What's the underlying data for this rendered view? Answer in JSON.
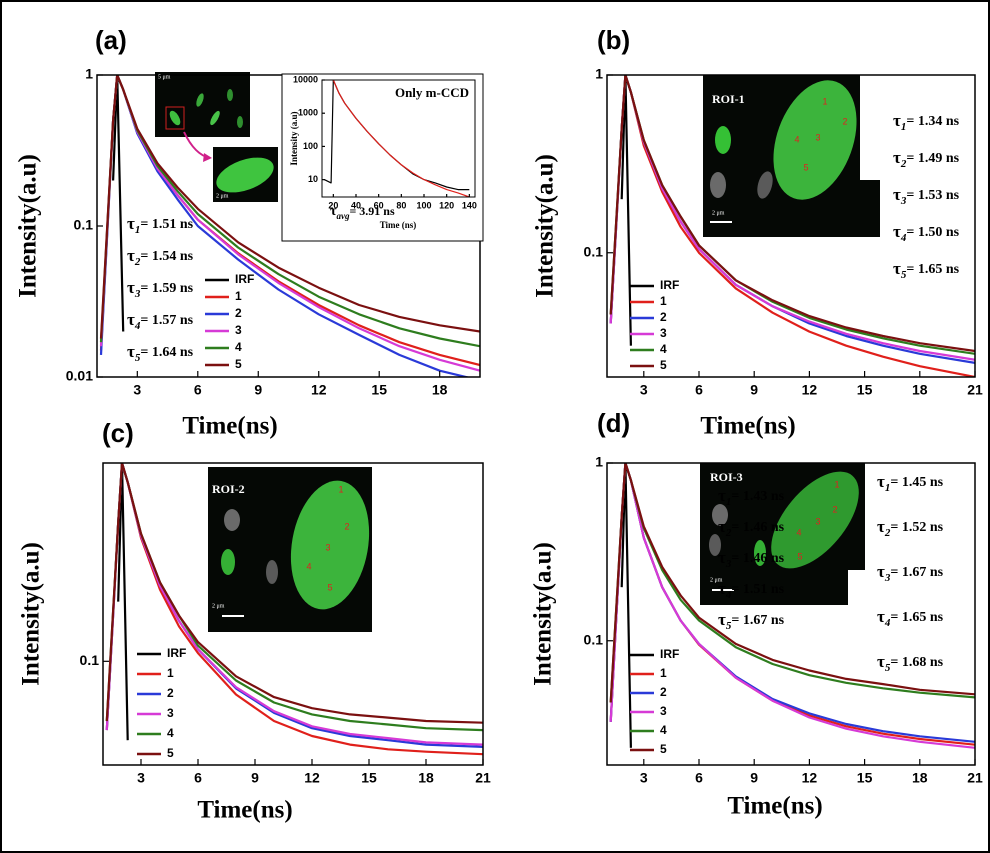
{
  "chart_data": [
    {
      "type": "line",
      "panel_label": "(a)",
      "xlabel": "Time(ns)",
      "ylabel": "Intensity(a.u)",
      "log_scale": true,
      "legend_position": "lower center",
      "xlim": [
        1,
        20
      ],
      "xticks": [
        3,
        6,
        9,
        12,
        15,
        18
      ],
      "ylim": [
        0.01,
        1
      ],
      "yticks": [
        0.01,
        0.1,
        1
      ],
      "x": [
        1.2,
        1.8,
        2,
        2.3,
        3,
        4,
        5,
        6,
        8,
        10,
        12,
        14,
        16,
        18,
        20
      ],
      "series": [
        {
          "name": "IRF",
          "color": "#000000",
          "values": [
            null,
            0.2,
            1,
            0.02,
            null,
            null,
            null,
            null,
            null,
            null,
            null,
            null,
            null,
            null,
            null
          ]
        },
        {
          "name": "1",
          "color": "#e0201b",
          "values": [
            0.015,
            0.5,
            1,
            0.8,
            0.42,
            0.24,
            0.16,
            0.11,
            0.066,
            0.043,
            0.03,
            0.022,
            0.017,
            0.014,
            0.012
          ]
        },
        {
          "name": "2",
          "color": "#2a3ad8",
          "values": [
            0.014,
            0.5,
            1,
            0.8,
            0.41,
            0.23,
            0.15,
            0.1,
            0.06,
            0.038,
            0.026,
            0.019,
            0.014,
            0.011,
            0.0095
          ]
        },
        {
          "name": "3",
          "color": "#d63ad6",
          "values": [
            0.016,
            0.5,
            1,
            0.8,
            0.42,
            0.24,
            0.16,
            0.11,
            0.065,
            0.042,
            0.029,
            0.021,
            0.016,
            0.013,
            0.011
          ]
        },
        {
          "name": "4",
          "color": "#2e7d1e",
          "values": [
            0.017,
            0.5,
            1,
            0.8,
            0.43,
            0.25,
            0.17,
            0.12,
            0.072,
            0.048,
            0.034,
            0.026,
            0.021,
            0.018,
            0.016
          ]
        },
        {
          "name": "5",
          "color": "#7b1010",
          "values": [
            0.018,
            0.5,
            1,
            0.8,
            0.44,
            0.26,
            0.18,
            0.13,
            0.078,
            0.053,
            0.039,
            0.03,
            0.025,
            0.022,
            0.02
          ]
        }
      ],
      "annotations": [
        {
          "symbol": "τ",
          "sub": "1",
          "text": "= 1.51 ns"
        },
        {
          "symbol": "τ",
          "sub": "2",
          "text": "= 1.54 ns"
        },
        {
          "symbol": "τ",
          "sub": "3",
          "text": "= 1.59 ns"
        },
        {
          "symbol": "τ",
          "sub": "4",
          "text": "= 1.57 ns"
        },
        {
          "symbol": "τ",
          "sub": "5",
          "text": "= 1.64 ns"
        }
      ],
      "image": {
        "scales": [
          "5 μm",
          "2 μm"
        ]
      }
    },
    {
      "type": "line",
      "panel_label": "(b)",
      "xlabel": "Time(ns)",
      "ylabel": "Intensity(a.u)",
      "log_scale": true,
      "legend_position": "lower left",
      "xlim": [
        1,
        21
      ],
      "xticks": [
        3,
        6,
        9,
        12,
        15,
        18,
        21
      ],
      "ylim": [
        0.02,
        1
      ],
      "yticks": [
        0.1,
        1
      ],
      "x": [
        1.2,
        1.8,
        2,
        2.3,
        3,
        4,
        5,
        6,
        8,
        10,
        12,
        14,
        16,
        18,
        21
      ],
      "series": [
        {
          "name": "IRF",
          "color": "#000000",
          "values": [
            null,
            0.2,
            1,
            0.03,
            null,
            null,
            null,
            null,
            null,
            null,
            null,
            null,
            null,
            null,
            null
          ]
        },
        {
          "name": "1",
          "color": "#e0201b",
          "values": [
            0.04,
            0.5,
            1,
            0.8,
            0.4,
            0.22,
            0.14,
            0.1,
            0.063,
            0.046,
            0.036,
            0.03,
            0.026,
            0.023,
            0.02
          ]
        },
        {
          "name": "2",
          "color": "#2a3ad8",
          "values": [
            0.04,
            0.5,
            1,
            0.8,
            0.42,
            0.23,
            0.15,
            0.105,
            0.066,
            0.05,
            0.04,
            0.034,
            0.03,
            0.027,
            0.024
          ]
        },
        {
          "name": "3",
          "color": "#d63ad6",
          "values": [
            0.04,
            0.5,
            1,
            0.8,
            0.42,
            0.23,
            0.15,
            0.105,
            0.066,
            0.05,
            0.041,
            0.035,
            0.031,
            0.028,
            0.025
          ]
        },
        {
          "name": "4",
          "color": "#2e7d1e",
          "values": [
            0.045,
            0.5,
            1,
            0.8,
            0.43,
            0.24,
            0.16,
            0.11,
            0.07,
            0.053,
            0.043,
            0.037,
            0.033,
            0.03,
            0.027
          ]
        },
        {
          "name": "5",
          "color": "#7b1010",
          "values": [
            0.045,
            0.5,
            1,
            0.8,
            0.43,
            0.24,
            0.16,
            0.11,
            0.07,
            0.054,
            0.044,
            0.038,
            0.034,
            0.031,
            0.028
          ]
        }
      ],
      "annotations": [
        {
          "symbol": "τ",
          "sub": "1",
          "text": "= 1.34 ns"
        },
        {
          "symbol": "τ",
          "sub": "2",
          "text": "= 1.49 ns"
        },
        {
          "symbol": "τ",
          "sub": "3",
          "text": "= 1.53 ns"
        },
        {
          "symbol": "τ",
          "sub": "4",
          "text": "= 1.50 ns"
        },
        {
          "symbol": "τ",
          "sub": "5",
          "text": "= 1.65 ns"
        }
      ],
      "image": {
        "roi": "ROI-1",
        "scales": [
          "2 μm"
        ],
        "markers": [
          "1",
          "2",
          "3",
          "4",
          "5"
        ]
      }
    },
    {
      "type": "line",
      "panel_label": "(c)",
      "xlabel": "Time(ns)",
      "ylabel": "Intensity(a.u)",
      "log_scale": true,
      "legend_position": "lower left",
      "xlim": [
        1,
        21
      ],
      "xticks": [
        3,
        6,
        9,
        12,
        15,
        18,
        21
      ],
      "ylim": [
        0.03,
        1
      ],
      "yticks": [
        0.1
      ],
      "x": [
        1.2,
        1.8,
        2,
        2.3,
        3,
        4,
        5,
        6,
        8,
        10,
        12,
        14,
        16,
        18,
        21
      ],
      "series": [
        {
          "name": "IRF",
          "color": "#000000",
          "values": [
            null,
            0.2,
            1,
            0.04,
            null,
            null,
            null,
            null,
            null,
            null,
            null,
            null,
            null,
            null,
            null
          ]
        },
        {
          "name": "1",
          "color": "#e0201b",
          "values": [
            0.045,
            0.5,
            1,
            0.8,
            0.42,
            0.23,
            0.15,
            0.11,
            0.068,
            0.05,
            0.042,
            0.038,
            0.036,
            0.035,
            0.034
          ]
        },
        {
          "name": "2",
          "color": "#2a3ad8",
          "values": [
            0.045,
            0.5,
            1,
            0.8,
            0.43,
            0.24,
            0.16,
            0.115,
            0.073,
            0.055,
            0.046,
            0.042,
            0.04,
            0.038,
            0.037
          ]
        },
        {
          "name": "3",
          "color": "#d63ad6",
          "values": [
            0.045,
            0.5,
            1,
            0.8,
            0.43,
            0.24,
            0.16,
            0.115,
            0.074,
            0.056,
            0.047,
            0.043,
            0.041,
            0.039,
            0.038
          ]
        },
        {
          "name": "4",
          "color": "#2e7d1e",
          "values": [
            0.05,
            0.5,
            1,
            0.8,
            0.44,
            0.25,
            0.17,
            0.12,
            0.08,
            0.062,
            0.054,
            0.05,
            0.048,
            0.046,
            0.045
          ]
        },
        {
          "name": "5",
          "color": "#7b1010",
          "values": [
            0.05,
            0.5,
            1,
            0.8,
            0.44,
            0.25,
            0.17,
            0.125,
            0.084,
            0.066,
            0.058,
            0.054,
            0.052,
            0.05,
            0.049
          ]
        }
      ],
      "annotations": [
        {
          "symbol": "τ",
          "sub": "1",
          "text": "= 1.43 ns"
        },
        {
          "symbol": "τ",
          "sub": "2",
          "text": "= 1.46 ns"
        },
        {
          "symbol": "τ",
          "sub": "3",
          "text": "= 1.46 ns"
        },
        {
          "symbol": "τ",
          "sub": "4",
          "text": "= 1.51 ns"
        },
        {
          "symbol": "τ",
          "sub": "5",
          "text": "= 1.67 ns"
        }
      ],
      "image": {
        "roi": "ROI-2",
        "scales": [
          "2 μm"
        ],
        "markers": [
          "1",
          "2",
          "3",
          "4",
          "5"
        ]
      }
    },
    {
      "type": "line",
      "panel_label": "(d)",
      "xlabel": "Time(ns)",
      "ylabel": "Intensity(a.u)",
      "log_scale": true,
      "legend_position": "lower left",
      "xlim": [
        1,
        21
      ],
      "xticks": [
        3,
        6,
        9,
        12,
        15,
        18,
        21
      ],
      "ylim": [
        0.02,
        1
      ],
      "yticks": [
        0.1,
        1
      ],
      "x": [
        1.2,
        1.8,
        2,
        2.3,
        3,
        4,
        5,
        6,
        8,
        10,
        12,
        14,
        16,
        18,
        21
      ],
      "series": [
        {
          "name": "IRF",
          "color": "#000000",
          "values": [
            null,
            0.2,
            1,
            0.025,
            null,
            null,
            null,
            null,
            null,
            null,
            null,
            null,
            null,
            null,
            null
          ]
        },
        {
          "name": "1",
          "color": "#e0201b",
          "values": [
            0.035,
            0.5,
            1,
            0.8,
            0.38,
            0.2,
            0.13,
            0.095,
            0.062,
            0.046,
            0.038,
            0.033,
            0.03,
            0.028,
            0.026
          ]
        },
        {
          "name": "2",
          "color": "#2a3ad8",
          "values": [
            0.035,
            0.5,
            1,
            0.8,
            0.38,
            0.2,
            0.13,
            0.096,
            0.063,
            0.047,
            0.039,
            0.034,
            0.031,
            0.029,
            0.027
          ]
        },
        {
          "name": "3",
          "color": "#d63ad6",
          "values": [
            0.035,
            0.5,
            1,
            0.8,
            0.38,
            0.2,
            0.13,
            0.096,
            0.062,
            0.046,
            0.037,
            0.032,
            0.029,
            0.027,
            0.025
          ]
        },
        {
          "name": "4",
          "color": "#2e7d1e",
          "values": [
            0.045,
            0.5,
            1,
            0.8,
            0.43,
            0.25,
            0.17,
            0.13,
            0.092,
            0.074,
            0.064,
            0.058,
            0.054,
            0.051,
            0.048
          ]
        },
        {
          "name": "5",
          "color": "#7b1010",
          "values": [
            0.045,
            0.5,
            1,
            0.8,
            0.44,
            0.26,
            0.18,
            0.135,
            0.096,
            0.078,
            0.068,
            0.061,
            0.057,
            0.053,
            0.05
          ]
        }
      ],
      "annotations": [
        {
          "symbol": "τ",
          "sub": "1",
          "text": "= 1.45 ns"
        },
        {
          "symbol": "τ",
          "sub": "2",
          "text": "= 1.52 ns"
        },
        {
          "symbol": "τ",
          "sub": "3",
          "text": "= 1.67 ns"
        },
        {
          "symbol": "τ",
          "sub": "4",
          "text": "= 1.65 ns"
        },
        {
          "symbol": "τ",
          "sub": "5",
          "text": "= 1.68 ns"
        }
      ],
      "image": {
        "roi": "ROI-3",
        "scales": [
          "2 μm"
        ],
        "markers": [
          "1",
          "2",
          "3",
          "4",
          "5"
        ]
      }
    },
    {
      "type": "line",
      "title": "Only m-CCD",
      "xlabel": "Time (ns)",
      "ylabel": "Intensity (a.u)",
      "log_scale": true,
      "xlim": [
        10,
        145
      ],
      "xticks": [
        20,
        40,
        60,
        80,
        100,
        120,
        140
      ],
      "ylim": [
        3,
        10000
      ],
      "yticks": [
        10,
        100,
        1000,
        10000
      ],
      "x": [
        12,
        18,
        20,
        25,
        30,
        40,
        50,
        60,
        70,
        80,
        90,
        100,
        110,
        120,
        130,
        140
      ],
      "series": [
        {
          "name": "data",
          "color": "#000000",
          "values": [
            10,
            8,
            10000,
            4000,
            2000,
            700,
            280,
            120,
            55,
            28,
            15,
            10,
            8,
            6,
            5,
            5
          ]
        },
        {
          "name": "fit",
          "color": "#e0201b",
          "values": [
            null,
            null,
            10000,
            4000,
            2000,
            700,
            280,
            120,
            55,
            28,
            16,
            10,
            7,
            5,
            4,
            3
          ]
        }
      ],
      "annotations": [
        {
          "symbol": "τ",
          "sub": "avg",
          "text": "= 3.91 ns"
        }
      ]
    }
  ]
}
